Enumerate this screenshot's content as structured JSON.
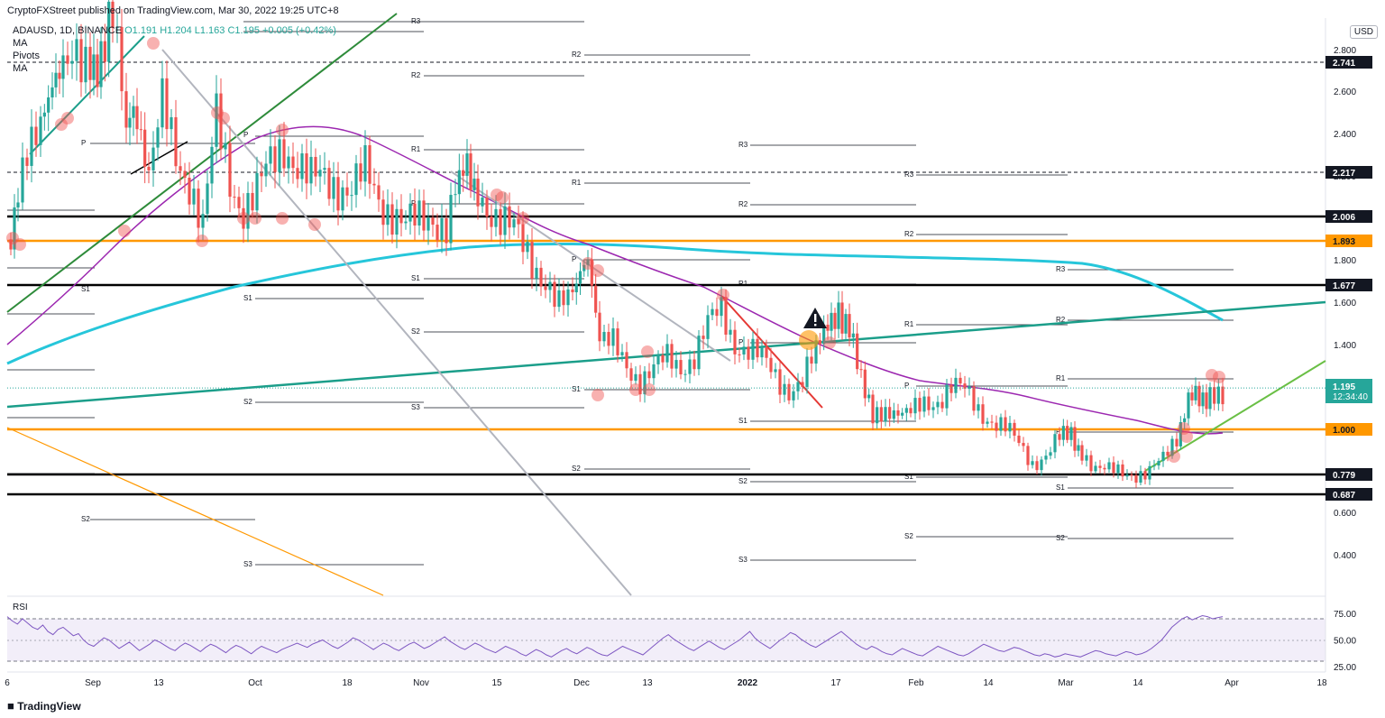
{
  "header": {
    "published": "CryptoFXStreet published on TradingView.com, Mar 30, 2022 19:25 UTC+8",
    "currency_button": "USD"
  },
  "legend": {
    "symbol": "ADAUSD, 1D, BINANCE",
    "ohlc": "O1.191 H1.204 L1.163 C1.195 +0.005 (+0.42%)",
    "indicators": [
      "MA",
      "Pivots",
      "MA"
    ]
  },
  "footer": {
    "logo": "TradingView"
  },
  "chart_data": {
    "type": "candlestick",
    "symbol": "ADAUSD",
    "timeframe": "1D",
    "exchange": "BINANCE",
    "last_price": "1.195",
    "countdown": "12:34:40",
    "x_ticks": [
      "6",
      "Sep",
      "13",
      "Oct",
      "18",
      "Nov",
      "15",
      "Dec",
      "13",
      "2022",
      "17",
      "Feb",
      "14",
      "Mar",
      "14",
      "Apr",
      "18"
    ],
    "y_ticks": [
      "2.800",
      "2.600",
      "2.400",
      "2.200",
      "1.800",
      "1.600",
      "1.400",
      "1.000",
      "0.600",
      "0.400"
    ],
    "ylim": [
      0.2,
      2.9
    ],
    "horizontal_levels": [
      {
        "label": "2.741",
        "value": 2.741,
        "style": "dashed",
        "color": "#131722"
      },
      {
        "label": "2.217",
        "value": 2.217,
        "style": "dashed",
        "color": "#131722"
      },
      {
        "label": "2.006",
        "value": 2.006,
        "style": "solid",
        "color": "#000000"
      },
      {
        "label": "1.893",
        "value": 1.893,
        "style": "solid",
        "color": "#ff9800"
      },
      {
        "label": "1.677",
        "value": 1.677,
        "style": "solid",
        "color": "#000000"
      },
      {
        "label": "1.000",
        "value": 1.0,
        "style": "solid",
        "color": "#ff9800"
      },
      {
        "label": "0.779",
        "value": 0.779,
        "style": "solid",
        "color": "#000000"
      },
      {
        "label": "0.687",
        "value": 0.687,
        "style": "solid",
        "color": "#000000"
      }
    ],
    "pivot_labels": [
      "R3",
      "R2",
      "R1",
      "P",
      "S1",
      "S2",
      "S3"
    ],
    "rsi": {
      "label": "RSI",
      "ticks": [
        "75.00",
        "50.00",
        "25.00"
      ],
      "upper": 70,
      "lower": 30,
      "values": [
        72,
        68,
        65,
        70,
        66,
        62,
        60,
        64,
        58,
        55,
        60,
        62,
        58,
        54,
        56,
        50,
        46,
        44,
        48,
        52,
        50,
        46,
        42,
        45,
        48,
        44,
        40,
        43,
        46,
        50,
        48,
        45,
        42,
        40,
        44,
        47,
        45,
        42,
        39,
        43,
        46,
        44,
        41,
        38,
        42,
        45,
        43,
        40,
        37,
        41,
        44,
        42,
        40,
        38,
        41,
        43,
        45,
        47,
        45,
        43,
        46,
        48,
        50,
        47,
        44,
        42,
        45,
        48,
        52,
        50,
        47,
        44,
        41,
        44,
        47,
        45,
        42,
        40,
        43,
        46,
        48,
        45,
        42,
        44,
        47,
        50,
        53,
        49,
        46,
        43,
        41,
        44,
        47,
        45,
        42,
        40,
        38,
        41,
        44,
        42,
        40,
        37,
        35,
        38,
        41,
        39,
        36,
        34,
        37,
        40,
        42,
        39,
        37,
        40,
        43,
        41,
        38,
        36,
        35,
        38,
        41,
        44,
        42,
        40,
        38,
        36,
        40,
        44,
        48,
        52,
        55,
        51,
        48,
        45,
        42,
        40,
        43,
        46,
        49,
        46,
        43,
        41,
        44,
        47,
        50,
        54,
        58,
        52,
        48,
        45,
        42,
        46,
        50,
        53,
        57,
        55,
        51,
        48,
        45,
        43,
        46,
        49,
        52,
        55,
        58,
        54,
        50,
        46,
        43,
        41,
        44,
        42,
        39,
        37,
        36,
        39,
        42,
        40,
        38,
        36,
        35,
        38,
        41,
        44,
        42,
        40,
        38,
        36,
        35,
        37,
        40,
        43,
        46,
        44,
        42,
        40,
        39,
        41,
        43,
        42,
        40,
        38,
        36,
        35,
        37,
        36,
        34,
        35,
        37,
        36,
        35,
        34,
        36,
        38,
        40,
        39,
        37,
        36,
        35,
        37,
        39,
        38,
        36,
        37,
        39,
        42,
        46,
        50,
        56,
        62,
        66,
        70,
        72,
        69,
        71,
        73,
        72,
        70,
        71,
        72
      ]
    }
  }
}
